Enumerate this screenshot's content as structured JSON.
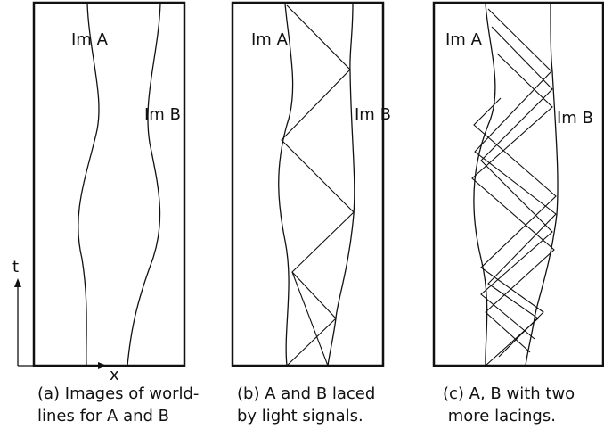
{
  "axes": {
    "t": "t",
    "x": "x"
  },
  "panels": [
    {
      "label_a": "Im A",
      "label_b": "Im B",
      "caption": [
        "(a) Images of world-",
        "lines for A and B"
      ]
    },
    {
      "label_a": "Im A",
      "label_b": "Im B",
      "caption": [
        "(b) A and B laced",
        "by light signals."
      ]
    },
    {
      "label_a": "Im A",
      "label_b": "Im B",
      "caption": [
        "(c) A, B with two",
        " more lacings."
      ]
    }
  ]
}
